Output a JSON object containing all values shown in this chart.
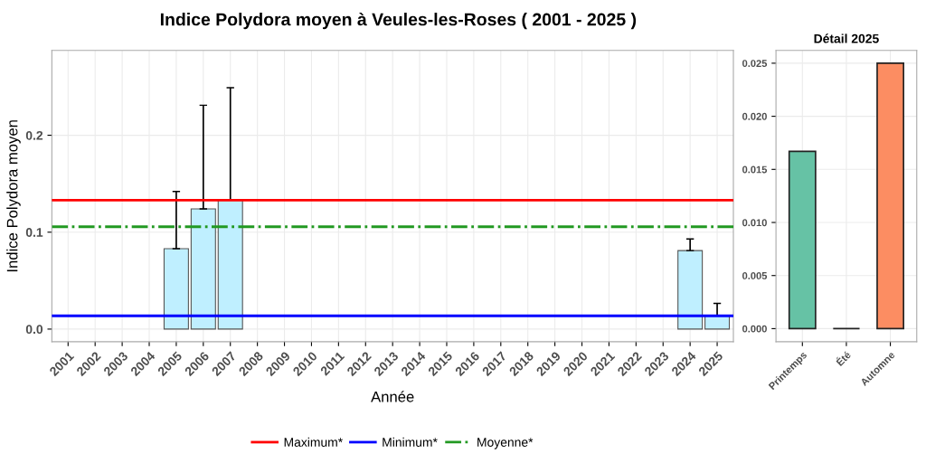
{
  "chart_data": [
    {
      "type": "bar",
      "title": "Indice Polydora moyen à Veules-les-Roses ( 2001 - 2025 )",
      "xlabel": "Année",
      "ylabel": "Indice Polydora moyen",
      "categories": [
        "2001",
        "2002",
        "2003",
        "2004",
        "2005",
        "2006",
        "2007",
        "2008",
        "2009",
        "2010",
        "2011",
        "2012",
        "2013",
        "2014",
        "2015",
        "2016",
        "2017",
        "2018",
        "2019",
        "2020",
        "2021",
        "2022",
        "2023",
        "2024",
        "2025"
      ],
      "series": [
        {
          "color": "#bfefff",
          "values": [
            null,
            null,
            null,
            null,
            0.083,
            0.124,
            0.133,
            null,
            null,
            null,
            null,
            null,
            null,
            null,
            null,
            null,
            null,
            null,
            null,
            null,
            null,
            null,
            null,
            0.081,
            0.014
          ],
          "errors": [
            null,
            null,
            null,
            null,
            [
              0.083,
              0.142
            ],
            [
              0.124,
              0.231
            ],
            [
              0.133,
              0.249
            ],
            null,
            null,
            null,
            null,
            null,
            null,
            null,
            null,
            null,
            null,
            null,
            null,
            null,
            null,
            null,
            null,
            [
              0.081,
              0.093
            ],
            [
              0.014,
              0.0265
            ]
          ]
        }
      ],
      "ylim": [
        -0.013,
        0.2875
      ],
      "yticks": [
        {
          "value": 0,
          "label": "0.0"
        },
        0.1,
        0.2
      ],
      "ref_lines": [
        {
          "axis": "y",
          "value": 0.133,
          "label": "Maximum*",
          "color": "#ff0000",
          "line_style": "solid"
        },
        {
          "axis": "y",
          "value": 0.0137,
          "label": "Minimum*",
          "color": "#0000ff",
          "line_style": "solid"
        },
        {
          "axis": "y",
          "value": 0.1056,
          "label": "Moyenne*",
          "color": "#229922",
          "line_style": "dashdot"
        }
      ],
      "grid": true,
      "legend": "bottom"
    },
    {
      "type": "bar",
      "title": "Détail 2025",
      "categories": [
        "Printemps",
        "Été",
        "Automne"
      ],
      "values": [
        0.0167,
        0,
        0.025
      ],
      "colors": [
        "#66c2a5",
        "#222222",
        "#fc8d62"
      ],
      "ylim": [
        -0.00123,
        0.0262
      ],
      "yticks": [
        {
          "value": 0,
          "label": "0.000"
        },
        {
          "value": 0.005,
          "label": "0.005"
        },
        {
          "value": 0.01,
          "label": "0.010"
        },
        {
          "value": 0.015,
          "label": "0.015"
        },
        {
          "value": 0.02,
          "label": "0.020"
        },
        {
          "value": 0.025,
          "label": "0.025"
        }
      ],
      "grid": true
    }
  ]
}
